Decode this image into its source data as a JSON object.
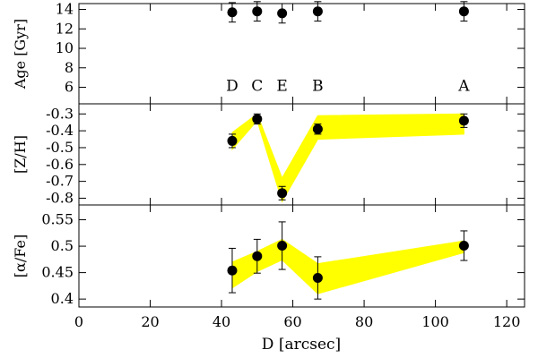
{
  "chart_data": [
    {
      "type": "scatter",
      "ylabel": "Age [Gyr]",
      "ylim": [
        4.3,
        14.6
      ],
      "yticks": [
        6,
        8,
        10,
        12,
        14
      ],
      "xlim": [
        0,
        125
      ],
      "band": false,
      "series": [
        {
          "x": [
            43,
            50,
            57,
            67,
            108
          ],
          "y": [
            13.7,
            13.8,
            13.6,
            13.8,
            13.8
          ],
          "err": [
            1.0,
            1.0,
            1.0,
            1.0,
            1.0
          ],
          "labels": [
            "D",
            "C",
            "E",
            "B",
            "A"
          ],
          "label_y": 6.2
        }
      ]
    },
    {
      "type": "scatter",
      "ylabel": "[Z/H]",
      "ylim": [
        -0.84,
        -0.24
      ],
      "yticks": [
        -0.3,
        -0.4,
        -0.5,
        -0.6,
        -0.7,
        -0.8
      ],
      "xlim": [
        0,
        125
      ],
      "band": true,
      "series": [
        {
          "x": [
            43,
            50,
            57,
            67,
            108
          ],
          "y": [
            -0.46,
            -0.33,
            -0.77,
            -0.39,
            -0.34
          ],
          "err": [
            0.04,
            0.03,
            0.04,
            0.03,
            0.04
          ],
          "band_upper": [
            -0.41,
            -0.3,
            -0.68,
            -0.31,
            -0.3
          ],
          "band_lower": [
            -0.51,
            -0.34,
            -0.82,
            -0.45,
            -0.42
          ]
        }
      ]
    },
    {
      "type": "scatter",
      "ylabel": "[α/Fe]",
      "ylim": [
        0.385,
        0.578
      ],
      "yticks": [
        0.4,
        0.45,
        0.5,
        0.55
      ],
      "xlim": [
        0,
        125
      ],
      "xticks": [
        0,
        20,
        40,
        60,
        80,
        100,
        120
      ],
      "xlabel": "D [arcsec]",
      "band": true,
      "series": [
        {
          "x": [
            43,
            50,
            57,
            67,
            108
          ],
          "y": [
            0.454,
            0.481,
            0.501,
            0.44,
            0.501
          ],
          "err": [
            0.042,
            0.032,
            0.045,
            0.04,
            0.028
          ],
          "band_upper": [
            0.47,
            0.49,
            0.513,
            0.467,
            0.51
          ],
          "band_lower": [
            0.421,
            0.452,
            0.474,
            0.41,
            0.488
          ]
        }
      ]
    }
  ]
}
